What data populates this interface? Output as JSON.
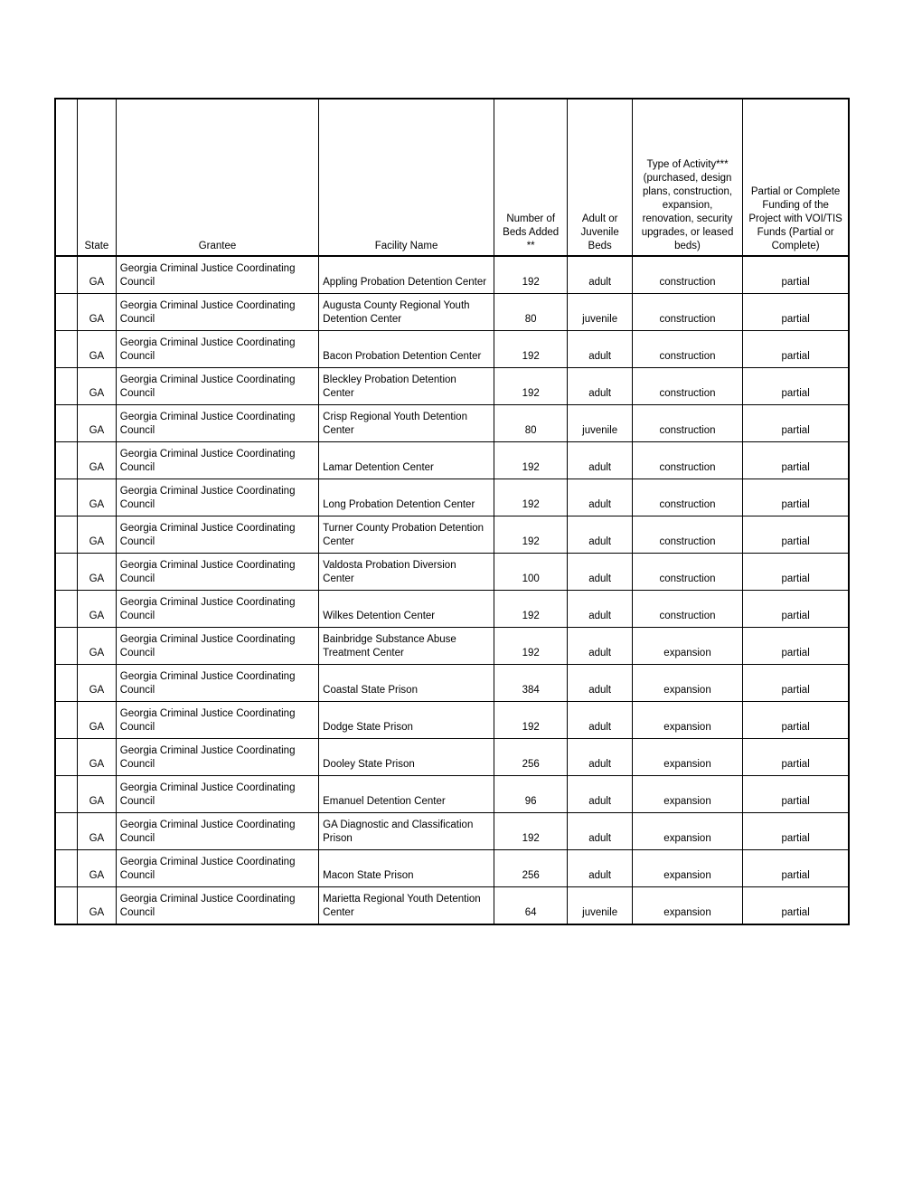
{
  "table": {
    "columns": [
      "",
      "State",
      "Grantee",
      "Facility Name",
      "Number of Beds Added **",
      "Adult or Juvenile Beds",
      "Type of Activity*** (purchased, design plans, construction, expansion, renovation, security upgrades, or leased beds)",
      "Partial or Complete Funding of the Project with VOI/TIS Funds (Partial or Complete)"
    ],
    "col_classes": [
      "col-blank",
      "col-state",
      "col-grantee",
      "col-facility",
      "col-beds",
      "col-aj",
      "col-act",
      "col-fund"
    ],
    "cell_align": [
      "c",
      "c",
      "l",
      "l",
      "c",
      "c",
      "c",
      "c"
    ],
    "rows": [
      [
        "",
        "GA",
        "Georgia Criminal Justice Coordinating Council",
        "Appling Probation Detention Center",
        "192",
        "adult",
        "construction",
        "partial"
      ],
      [
        "",
        "GA",
        "Georgia Criminal Justice Coordinating Council",
        "Augusta County Regional Youth Detention Center",
        "80",
        "juvenile",
        "construction",
        "partial"
      ],
      [
        "",
        "GA",
        "Georgia Criminal Justice Coordinating Council",
        "Bacon Probation Detention Center",
        "192",
        "adult",
        "construction",
        "partial"
      ],
      [
        "",
        "GA",
        "Georgia Criminal Justice Coordinating Council",
        "Bleckley Probation Detention Center",
        "192",
        "adult",
        "construction",
        "partial"
      ],
      [
        "",
        "GA",
        "Georgia Criminal Justice Coordinating Council",
        "Crisp Regional Youth Detention Center",
        "80",
        "juvenile",
        "construction",
        "partial"
      ],
      [
        "",
        "GA",
        "Georgia Criminal Justice Coordinating Council",
        "Lamar Detention Center",
        "192",
        "adult",
        "construction",
        "partial"
      ],
      [
        "",
        "GA",
        "Georgia Criminal Justice Coordinating Council",
        "Long Probation Detention Center",
        "192",
        "adult",
        "construction",
        "partial"
      ],
      [
        "",
        "GA",
        "Georgia Criminal Justice Coordinating Council",
        "Turner County Probation Detention Center",
        "192",
        "adult",
        "construction",
        "partial"
      ],
      [
        "",
        "GA",
        "Georgia Criminal Justice Coordinating Council",
        "Valdosta Probation Diversion Center",
        "100",
        "adult",
        "construction",
        "partial"
      ],
      [
        "",
        "GA",
        "Georgia Criminal Justice Coordinating Council",
        "Wilkes Detention Center",
        "192",
        "adult",
        "construction",
        "partial"
      ],
      [
        "",
        "GA",
        "Georgia Criminal Justice Coordinating Council",
        "Bainbridge Substance Abuse Treatment Center",
        "192",
        "adult",
        "expansion",
        "partial"
      ],
      [
        "",
        "GA",
        "Georgia Criminal Justice Coordinating Council",
        "Coastal State Prison",
        "384",
        "adult",
        "expansion",
        "partial"
      ],
      [
        "",
        "GA",
        "Georgia Criminal Justice Coordinating Council",
        "Dodge State Prison",
        "192",
        "adult",
        "expansion",
        "partial"
      ],
      [
        "",
        "GA",
        "Georgia Criminal Justice Coordinating Council",
        "Dooley State Prison",
        "256",
        "adult",
        "expansion",
        "partial"
      ],
      [
        "",
        "GA",
        "Georgia Criminal Justice Coordinating Council",
        "Emanuel Detention Center",
        "96",
        "adult",
        "expansion",
        "partial"
      ],
      [
        "",
        "GA",
        "Georgia Criminal Justice Coordinating Council",
        "GA Diagnostic and Classification Prison",
        "192",
        "adult",
        "expansion",
        "partial"
      ],
      [
        "",
        "GA",
        "Georgia Criminal Justice Coordinating Council",
        "Macon State Prison",
        "256",
        "adult",
        "expansion",
        "partial"
      ],
      [
        "",
        "GA",
        "Georgia Criminal Justice Coordinating Council",
        "Marietta Regional Youth Detention Center",
        "64",
        "juvenile",
        "expansion",
        "partial"
      ]
    ]
  }
}
